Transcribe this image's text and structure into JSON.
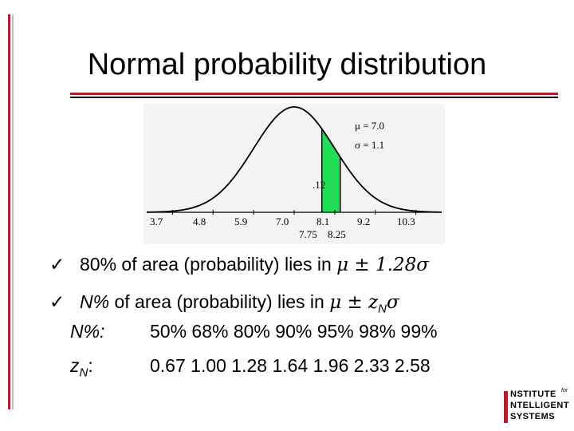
{
  "colors": {
    "accent_red": "#b01e2f",
    "fill_green": "#22dd55",
    "rule_black": "#000000",
    "figure_bg": "#f4f4f4"
  },
  "title": "Normal probability distribution",
  "figure": {
    "params": {
      "mu": "μ = 7.0",
      "sigma": "σ = 1.1"
    },
    "area_label": ".12",
    "ticks": [
      "3.7",
      "4.8",
      "5.9",
      "7.0",
      "8.1",
      "9.2",
      "10.3"
    ],
    "bounds": [
      "7.75",
      "8.25"
    ]
  },
  "bullets": [
    {
      "check": "ü",
      "text": "80% of area (probability) lies in ",
      "math": "μ ± 1.28σ"
    },
    {
      "check": "ü",
      "prefix": "N%",
      "text": " of area (probability) lies in ",
      "math_pre": "μ ± z",
      "math_sub": "N",
      "math_post": "σ"
    }
  ],
  "table": {
    "row1": {
      "label": "N%:",
      "values": "50% 68% 80% 90% 95% 98% 99%"
    },
    "row2": {
      "label_main": "z",
      "label_sub": "N",
      "label_tail": ":",
      "values": "0.67 1.00 1.28 1.64 1.96 2.33 2.58"
    }
  },
  "logo": {
    "line1": "NSTITUTE",
    "for": "for",
    "line2": "NTELLIGENT",
    "line3": "SYSTEMS"
  }
}
